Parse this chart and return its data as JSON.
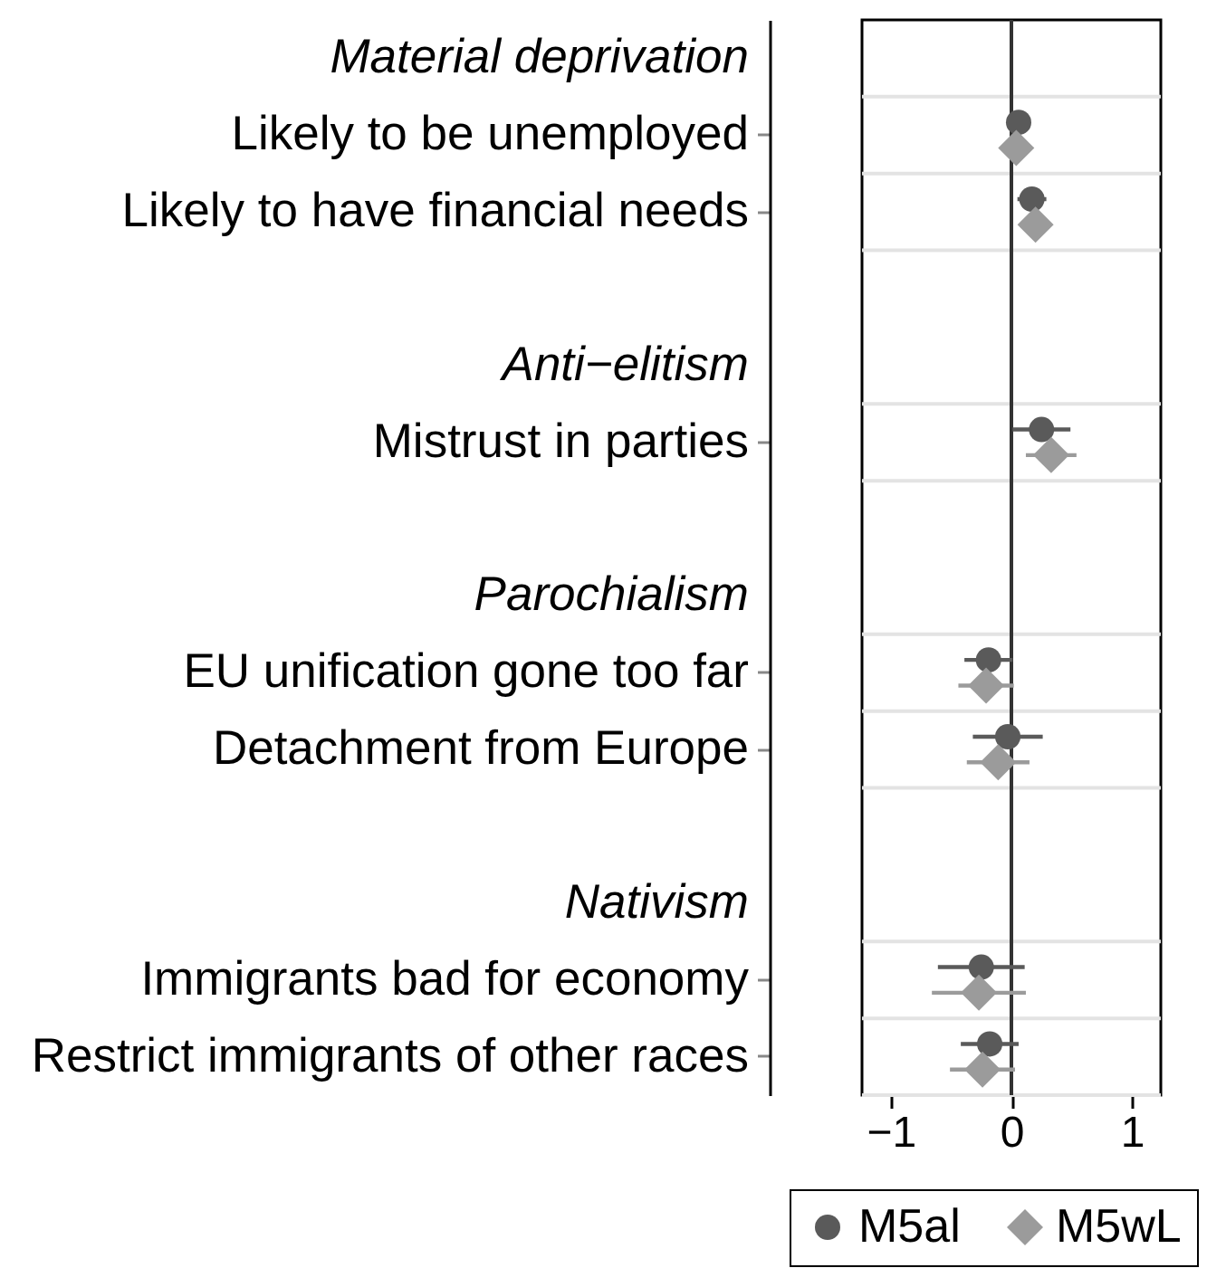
{
  "chart_data": {
    "type": "scatter",
    "orientation": "horizontal",
    "categories": [
      "Material deprivation",
      "Likely to be unemployed",
      "Likely to have financial needs",
      null,
      "Anti−elitism",
      "Mistrust in parties",
      null,
      "Parochialism",
      "EU unification gone too far",
      "Detachment from Europe",
      null,
      "Nativism",
      "Immigrants bad for economy",
      "Restrict immigrants of other races"
    ],
    "series": [
      {
        "name": "M5al",
        "color": "#5a5a5a",
        "marker": "circle",
        "values": [
          null,
          0.06,
          0.17,
          null,
          null,
          0.25,
          null,
          null,
          -0.19,
          -0.03,
          null,
          null,
          -0.25,
          -0.18
        ],
        "errors": [
          null,
          null,
          0.12,
          null,
          null,
          0.24,
          null,
          null,
          0.2,
          0.29,
          null,
          null,
          0.36,
          0.24
        ]
      },
      {
        "name": "M5wL",
        "color": "#9b9b9b",
        "marker": "diamond",
        "values": [
          null,
          0.04,
          0.2,
          null,
          null,
          0.33,
          null,
          null,
          -0.21,
          -0.11,
          null,
          null,
          -0.27,
          -0.24
        ],
        "errors": [
          null,
          null,
          null,
          null,
          null,
          0.21,
          null,
          null,
          0.23,
          0.26,
          null,
          null,
          0.39,
          0.27
        ]
      }
    ],
    "xlim": [
      -1.24,
      1.24
    ],
    "xticks": [
      -1,
      0,
      1
    ],
    "ref_lines": [
      {
        "axis": "x",
        "value": 0,
        "color": "#333333"
      }
    ],
    "grid": "y",
    "legend": "bottom"
  }
}
